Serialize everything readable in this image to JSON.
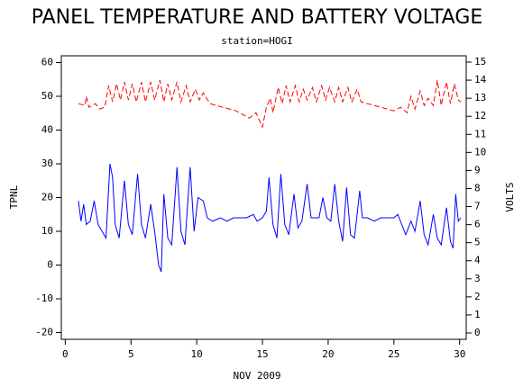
{
  "chart_data": {
    "type": "line",
    "title": "PANEL TEMPERATURE AND BATTERY VOLTAGE",
    "subtitle": "station=HOGI",
    "x_label": "NOV 2009",
    "y_label": "TPNL",
    "y2_label": "VOLTS",
    "xlim": [
      -0.3,
      30.5
    ],
    "xticks": [
      0,
      5,
      10,
      15,
      20,
      25,
      30
    ],
    "ylim": [
      -22,
      62
    ],
    "yticks": [
      -20,
      -10,
      0,
      10,
      20,
      30,
      40,
      50,
      60
    ],
    "y2lim": [
      -0.35,
      15.35
    ],
    "y2ticks": [
      0,
      1,
      2,
      3,
      4,
      5,
      6,
      7,
      8,
      9,
      10,
      11,
      12,
      13,
      14,
      15
    ],
    "series": [
      {
        "color": "#0000ff",
        "axis": "y",
        "dashed": false,
        "x": [
          1.0,
          1.2,
          1.4,
          1.6,
          1.9,
          2.2,
          2.5,
          2.8,
          3.1,
          3.4,
          3.6,
          3.8,
          4.1,
          4.5,
          4.8,
          5.1,
          5.5,
          5.8,
          6.1,
          6.5,
          6.8,
          7.1,
          7.3,
          7.5,
          7.8,
          8.1,
          8.5,
          8.8,
          9.1,
          9.5,
          9.8,
          10.1,
          10.5,
          10.8,
          11.2,
          11.8,
          12.3,
          12.8,
          13.3,
          13.8,
          14.3,
          14.6,
          15.0,
          15.3,
          15.5,
          15.8,
          16.1,
          16.4,
          16.7,
          17.0,
          17.4,
          17.7,
          18.0,
          18.4,
          18.7,
          19.0,
          19.3,
          19.6,
          19.9,
          20.2,
          20.5,
          20.8,
          21.1,
          21.4,
          21.7,
          22.0,
          22.4,
          22.6,
          23.0,
          23.5,
          24.0,
          24.5,
          25.0,
          25.3,
          25.6,
          25.9,
          26.3,
          26.6,
          27.0,
          27.3,
          27.6,
          28.0,
          28.3,
          28.6,
          29.0,
          29.3,
          29.5,
          29.7,
          29.9,
          30.1
        ],
        "values": [
          19,
          13,
          18,
          12,
          13,
          19,
          12,
          10,
          8,
          30,
          26,
          12,
          8,
          25,
          12,
          9,
          27,
          12,
          8,
          18,
          10,
          0,
          -2,
          21,
          8,
          6,
          29,
          10,
          6,
          29,
          10,
          20,
          19,
          14,
          13,
          14,
          13,
          14,
          14,
          14,
          15,
          13,
          14,
          16,
          26,
          12,
          8,
          27,
          12,
          9,
          21,
          11,
          13,
          24,
          14,
          14,
          14,
          20,
          14,
          13,
          24,
          13,
          7,
          23,
          9,
          8,
          22,
          14,
          14,
          13,
          14,
          14,
          14,
          15,
          12,
          9,
          13,
          10,
          19,
          9,
          6,
          15,
          8,
          6,
          17,
          7,
          5,
          21,
          13,
          14
        ]
      },
      {
        "color": "#ff0000",
        "axis": "y2",
        "dashed": true,
        "x": [
          1.0,
          1.5,
          1.6,
          1.8,
          2.3,
          2.6,
          3.0,
          3.3,
          3.6,
          3.9,
          4.2,
          4.5,
          4.8,
          5.1,
          5.4,
          5.8,
          6.1,
          6.5,
          6.8,
          7.2,
          7.5,
          7.8,
          8.1,
          8.5,
          8.8,
          9.2,
          9.5,
          9.9,
          10.2,
          10.5,
          11.0,
          12.0,
          13.0,
          13.5,
          14.0,
          14.5,
          15.0,
          15.3,
          15.6,
          15.8,
          16.2,
          16.5,
          16.8,
          17.1,
          17.5,
          17.8,
          18.1,
          18.4,
          18.8,
          19.1,
          19.5,
          19.8,
          20.1,
          20.5,
          20.8,
          21.1,
          21.5,
          21.8,
          22.2,
          22.5,
          23.0,
          24.0,
          25.0,
          25.5,
          26.0,
          26.3,
          26.6,
          27.0,
          27.3,
          27.6,
          28.0,
          28.3,
          28.6,
          29.0,
          29.3,
          29.6,
          29.9,
          30.1
        ],
        "values": [
          12.7,
          12.6,
          13.1,
          12.5,
          12.7,
          12.4,
          12.5,
          13.7,
          12.8,
          13.8,
          12.9,
          13.9,
          12.9,
          13.8,
          12.8,
          13.9,
          12.8,
          13.9,
          12.9,
          14.0,
          12.8,
          13.8,
          12.9,
          13.9,
          12.8,
          13.7,
          12.8,
          13.5,
          12.9,
          13.3,
          12.7,
          12.5,
          12.3,
          12.1,
          11.9,
          12.2,
          11.4,
          12.5,
          13.0,
          12.2,
          13.6,
          12.7,
          13.7,
          12.8,
          13.7,
          12.8,
          13.5,
          12.9,
          13.6,
          12.8,
          13.7,
          12.9,
          13.6,
          12.8,
          13.6,
          12.8,
          13.6,
          12.8,
          13.5,
          12.8,
          12.7,
          12.5,
          12.3,
          12.5,
          12.2,
          13.1,
          12.4,
          13.4,
          12.6,
          13.0,
          12.6,
          14.0,
          12.6,
          13.9,
          12.7,
          13.8,
          12.9,
          12.8
        ]
      }
    ]
  }
}
